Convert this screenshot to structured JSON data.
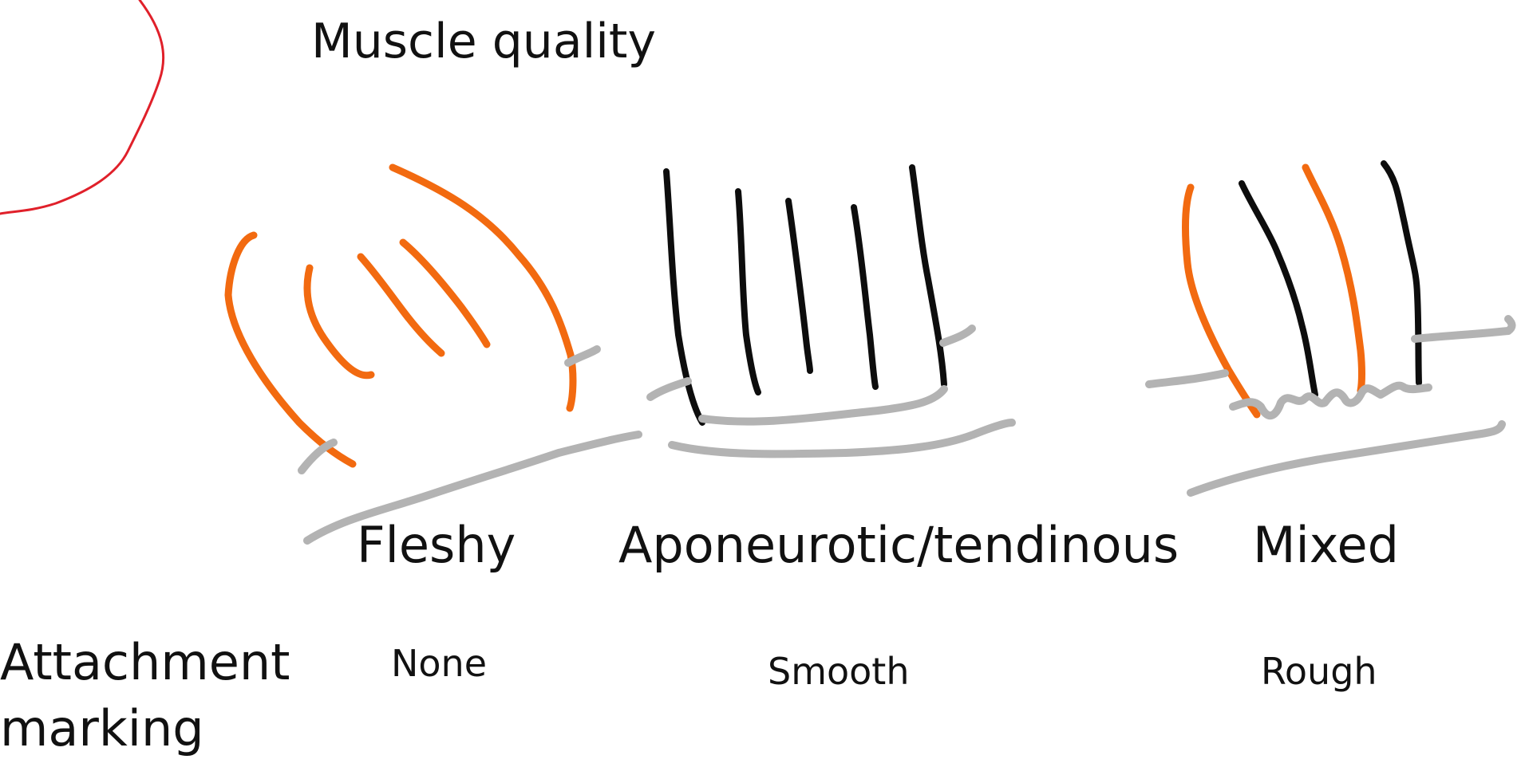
{
  "diagram": {
    "title": "Muscle quality",
    "categories": [
      {
        "id": "fleshy",
        "label": "Fleshy",
        "marking": "None"
      },
      {
        "id": "aponeurotic",
        "label": "Aponeurotic/tendinous",
        "marking": "Smooth"
      },
      {
        "id": "mixed",
        "label": "Mixed",
        "marking": "Rough"
      }
    ],
    "row_label_line1": "Attachment",
    "row_label_line2": "marking"
  },
  "colors": {
    "fleshy_fiber": "#f26a10",
    "tendon_fiber": "#0d0d0d",
    "bone_surface": "#b3b3b3",
    "annotation_arc": "#e0202a"
  }
}
